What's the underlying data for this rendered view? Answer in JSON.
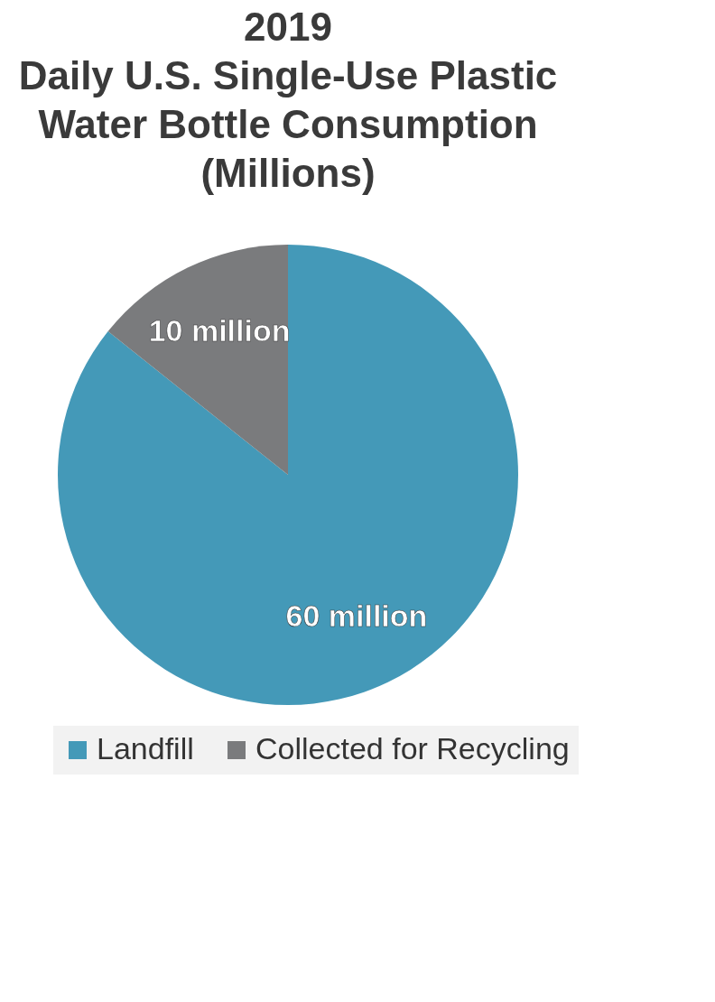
{
  "chart_data": {
    "type": "pie",
    "title": "2019\nDaily U.S. Single-Use Plastic\nWater Bottle Consumption\n(Millions)",
    "categories": [
      "Landfill",
      "Collected for Recycling"
    ],
    "values": [
      60,
      10
    ],
    "colors": [
      "#4499b8",
      "#7a7b7d"
    ],
    "value_labels": [
      "60 million",
      "10 million"
    ],
    "legend": "bottom"
  }
}
